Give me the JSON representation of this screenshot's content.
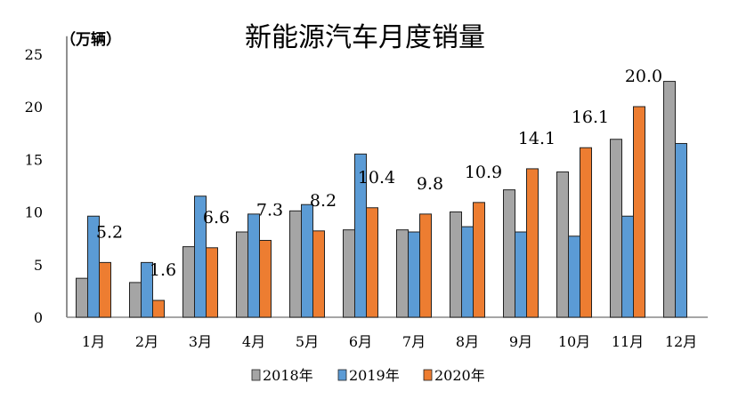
{
  "chart_data": {
    "type": "bar",
    "title": "新能源汽车月度销量",
    "ylabel": "（万辆）",
    "xlabel": "",
    "ylim": [
      0,
      25
    ],
    "yticks": [
      0,
      5,
      10,
      15,
      20,
      25
    ],
    "grid": false,
    "legend": "bottom",
    "categories": [
      "1月",
      "2月",
      "3月",
      "4月",
      "5月",
      "6月",
      "7月",
      "8月",
      "9月",
      "10月",
      "11月",
      "12月"
    ],
    "series": [
      {
        "name": "2018年",
        "color": "#a5a5a5",
        "values": [
          3.7,
          3.3,
          6.7,
          8.1,
          10.1,
          8.3,
          8.3,
          10.0,
          12.1,
          13.8,
          16.9,
          22.4
        ]
      },
      {
        "name": "2019年",
        "color": "#5b9bd5",
        "values": [
          9.6,
          5.2,
          11.5,
          9.8,
          10.7,
          15.5,
          8.1,
          8.6,
          8.1,
          7.7,
          9.6,
          16.5
        ]
      },
      {
        "name": "2020年",
        "color": "#ed7d31",
        "values": [
          5.2,
          1.6,
          6.6,
          7.3,
          8.2,
          10.4,
          9.8,
          10.9,
          14.1,
          16.1,
          20.0,
          null
        ]
      }
    ],
    "data_labels": [
      "5.2",
      "1.6",
      "6.6",
      "7.3",
      "8.2",
      "10.4",
      "9.8",
      "10.9",
      "14.1",
      "16.1",
      "20.0",
      ""
    ]
  }
}
